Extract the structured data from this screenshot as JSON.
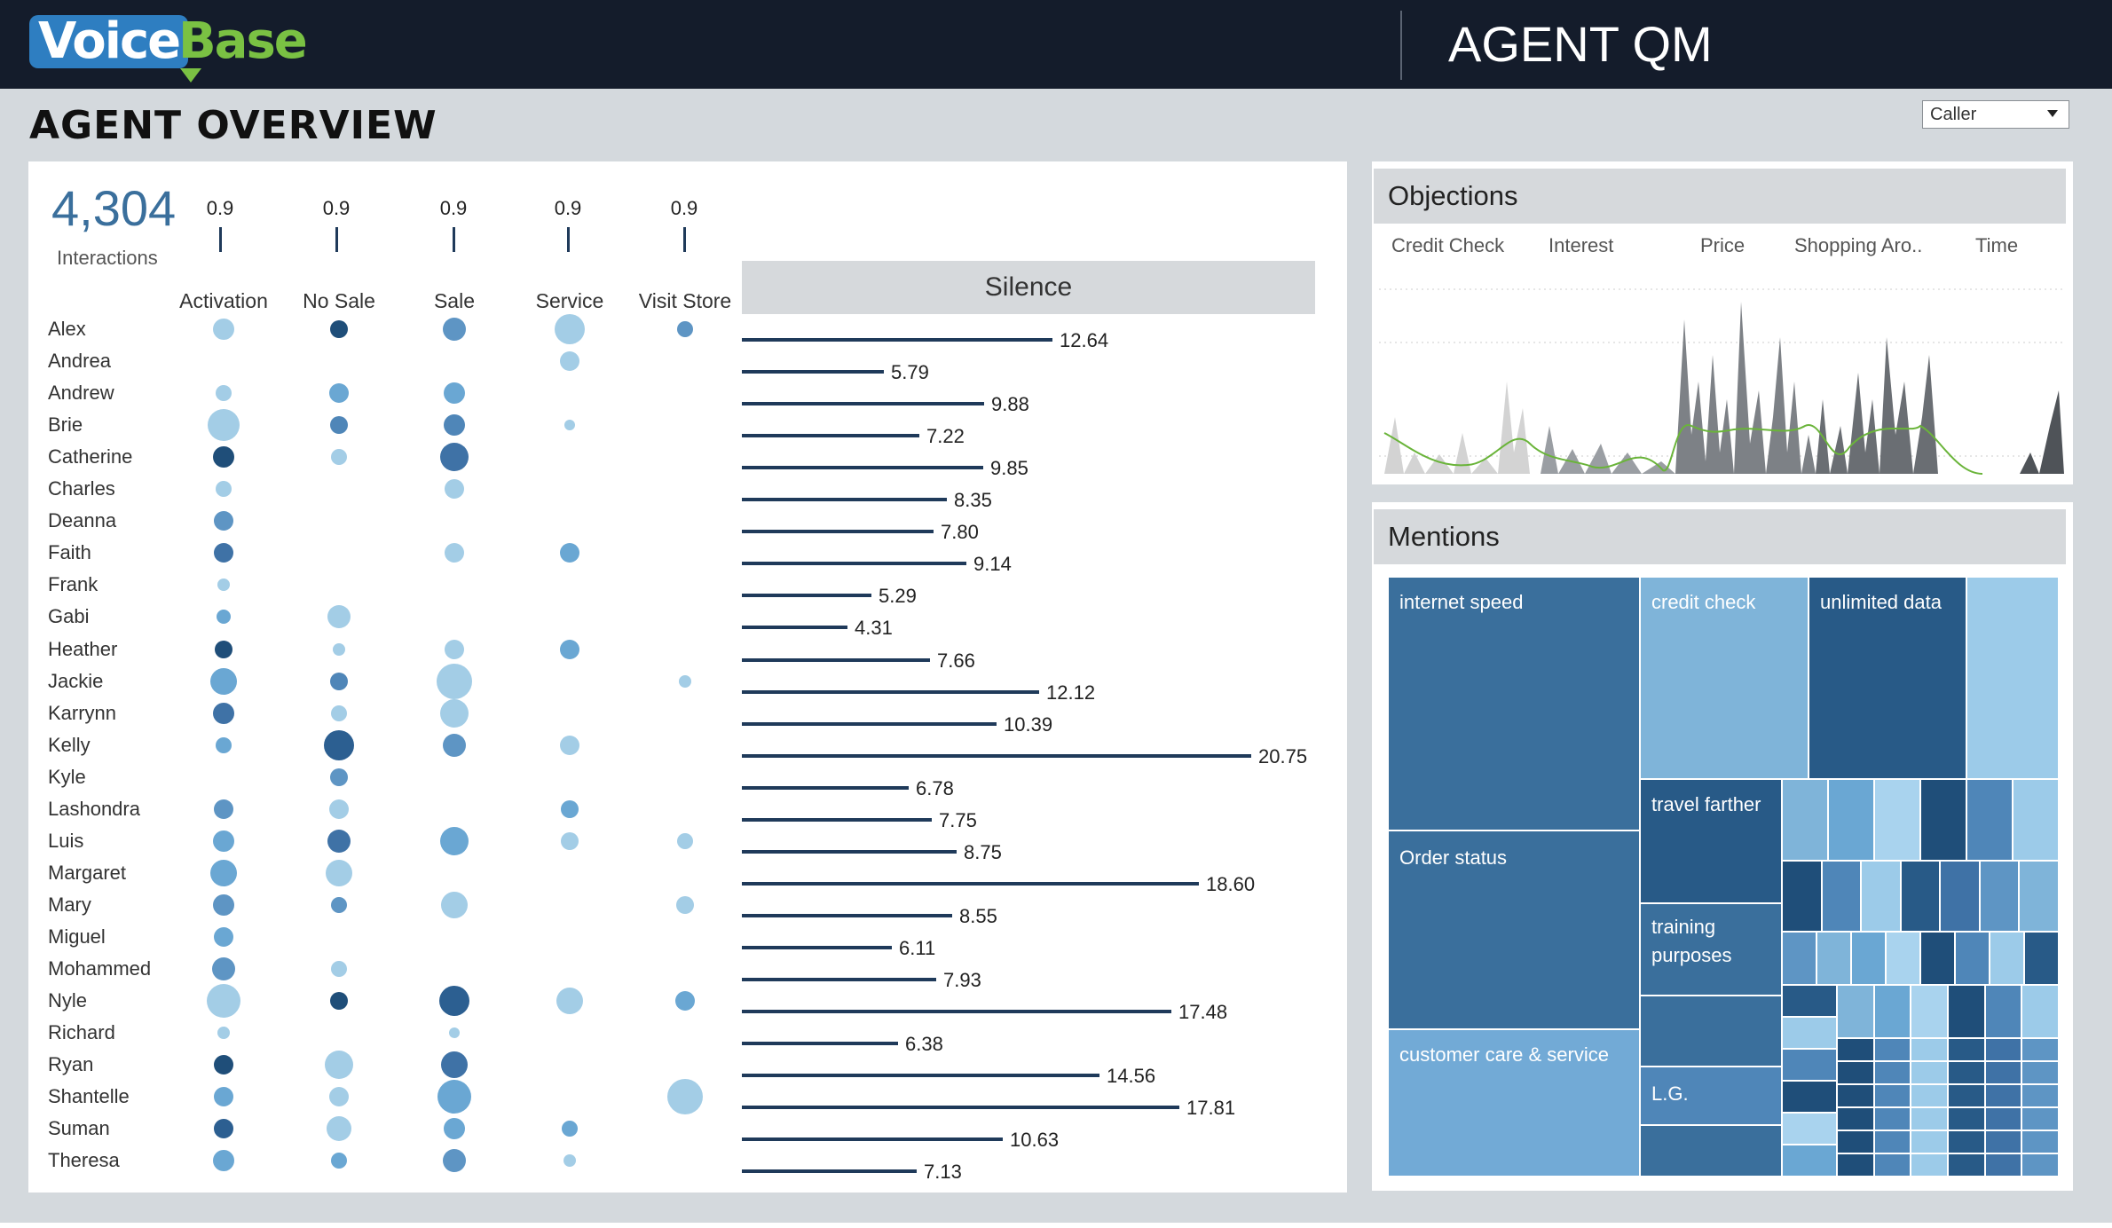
{
  "header": {
    "logo_voice": "Voice",
    "logo_base": "Base",
    "app_title": "AGENT QM"
  },
  "page_title": "AGENT OVERVIEW",
  "filter": {
    "selected": "Caller"
  },
  "kpi": {
    "value": "4,304",
    "label": "Interactions"
  },
  "columns": [
    {
      "label": "Activation",
      "ref": "0.9"
    },
    {
      "label": "No Sale",
      "ref": "0.9"
    },
    {
      "label": "Sale",
      "ref": "0.9"
    },
    {
      "label": "Service",
      "ref": "0.9"
    },
    {
      "label": "Visit Store",
      "ref": "0.9"
    }
  ],
  "silence": {
    "title": "Silence",
    "max": 20.75
  },
  "agents": [
    {
      "name": "Alex",
      "silence": "12.64",
      "dots": [
        [
          12,
          "#a3cde6"
        ],
        [
          10,
          "#1f4e79"
        ],
        [
          13,
          "#5e95c4"
        ],
        [
          17,
          "#a3cde6"
        ],
        [
          9,
          "#5e95c4"
        ]
      ]
    },
    {
      "name": "Andrea",
      "silence": "5.79",
      "dots": [
        null,
        null,
        null,
        [
          11,
          "#a3cde6"
        ],
        null
      ]
    },
    {
      "name": "Andrew",
      "silence": "9.88",
      "dots": [
        [
          9,
          "#a3cde6"
        ],
        [
          11,
          "#6aa7d3"
        ],
        [
          12,
          "#6aa7d3"
        ],
        null,
        null
      ]
    },
    {
      "name": "Brie",
      "silence": "7.22",
      "dots": [
        [
          18,
          "#a3cde6"
        ],
        [
          10,
          "#4f86b8"
        ],
        [
          12,
          "#4f86b8"
        ],
        [
          6,
          "#a3cde6"
        ],
        null
      ]
    },
    {
      "name": "Catherine",
      "silence": "9.85",
      "dots": [
        [
          12,
          "#1f4e79"
        ],
        [
          9,
          "#a3cde6"
        ],
        [
          16,
          "#3f72a6"
        ],
        null,
        null
      ]
    },
    {
      "name": "Charles",
      "silence": "8.35",
      "dots": [
        [
          9,
          "#a3cde6"
        ],
        null,
        [
          11,
          "#a3cde6"
        ],
        null,
        null
      ]
    },
    {
      "name": "Deanna",
      "silence": "7.80",
      "dots": [
        [
          11,
          "#5e95c4"
        ],
        null,
        null,
        null,
        null
      ]
    },
    {
      "name": "Faith",
      "silence": "9.14",
      "dots": [
        [
          11,
          "#3f72a6"
        ],
        null,
        [
          11,
          "#a3cde6"
        ],
        [
          11,
          "#6aa7d3"
        ],
        null
      ]
    },
    {
      "name": "Frank",
      "silence": "5.29",
      "dots": [
        [
          7,
          "#a3cde6"
        ],
        null,
        null,
        null,
        null
      ]
    },
    {
      "name": "Gabi",
      "silence": "4.31",
      "dots": [
        [
          8,
          "#6aa7d3"
        ],
        [
          13,
          "#a3cde6"
        ],
        null,
        null,
        null
      ]
    },
    {
      "name": "Heather",
      "silence": "7.66",
      "dots": [
        [
          10,
          "#1f4e79"
        ],
        [
          7,
          "#a3cde6"
        ],
        [
          11,
          "#a3cde6"
        ],
        [
          11,
          "#6aa7d3"
        ],
        null
      ]
    },
    {
      "name": "Jackie",
      "silence": "12.12",
      "dots": [
        [
          15,
          "#6aa7d3"
        ],
        [
          10,
          "#4f86b8"
        ],
        [
          20,
          "#a3cde6"
        ],
        null,
        [
          7,
          "#a3cde6"
        ]
      ]
    },
    {
      "name": "Karrynn",
      "silence": "10.39",
      "dots": [
        [
          12,
          "#3f72a6"
        ],
        [
          9,
          "#a3cde6"
        ],
        [
          16,
          "#a3cde6"
        ],
        null,
        null
      ]
    },
    {
      "name": "Kelly",
      "silence": "20.75",
      "dots": [
        [
          9,
          "#6aa7d3"
        ],
        [
          17,
          "#2c5f91"
        ],
        [
          13,
          "#5e95c4"
        ],
        [
          11,
          "#a3cde6"
        ],
        null
      ]
    },
    {
      "name": "Kyle",
      "silence": "6.78",
      "dots": [
        null,
        [
          10,
          "#5e95c4"
        ],
        null,
        null,
        null
      ]
    },
    {
      "name": "Lashondra",
      "silence": "7.75",
      "dots": [
        [
          11,
          "#5e95c4"
        ],
        [
          11,
          "#a3cde6"
        ],
        null,
        [
          10,
          "#6aa7d3"
        ],
        null
      ]
    },
    {
      "name": "Luis",
      "silence": "8.75",
      "dots": [
        [
          12,
          "#6aa7d3"
        ],
        [
          13,
          "#3f72a6"
        ],
        [
          16,
          "#6aa7d3"
        ],
        [
          10,
          "#a3cde6"
        ],
        [
          9,
          "#a3cde6"
        ]
      ]
    },
    {
      "name": "Margaret",
      "silence": "18.60",
      "dots": [
        [
          15,
          "#6aa7d3"
        ],
        [
          15,
          "#a3cde6"
        ],
        null,
        null,
        null
      ]
    },
    {
      "name": "Mary",
      "silence": "8.55",
      "dots": [
        [
          12,
          "#5e95c4"
        ],
        [
          9,
          "#5e95c4"
        ],
        [
          15,
          "#a3cde6"
        ],
        null,
        [
          10,
          "#a3cde6"
        ]
      ]
    },
    {
      "name": "Miguel",
      "silence": "6.11",
      "dots": [
        [
          11,
          "#6aa7d3"
        ],
        null,
        null,
        null,
        null
      ]
    },
    {
      "name": "Mohammed",
      "silence": "7.93",
      "dots": [
        [
          13,
          "#5e95c4"
        ],
        [
          9,
          "#a3cde6"
        ],
        null,
        null,
        null
      ]
    },
    {
      "name": "Nyle",
      "silence": "17.48",
      "dots": [
        [
          19,
          "#a3cde6"
        ],
        [
          10,
          "#1f4e79"
        ],
        [
          17,
          "#2c5f91"
        ],
        [
          15,
          "#a3cde6"
        ],
        [
          11,
          "#6aa7d3"
        ]
      ]
    },
    {
      "name": "Richard",
      "silence": "6.38",
      "dots": [
        [
          7,
          "#a3cde6"
        ],
        null,
        [
          6,
          "#a3cde6"
        ],
        null,
        null
      ]
    },
    {
      "name": "Ryan",
      "silence": "14.56",
      "dots": [
        [
          11,
          "#1f4e79"
        ],
        [
          16,
          "#a3cde6"
        ],
        [
          15,
          "#3f72a6"
        ],
        null,
        null
      ]
    },
    {
      "name": "Shantelle",
      "silence": "17.81",
      "dots": [
        [
          11,
          "#6aa7d3"
        ],
        [
          11,
          "#a3cde6"
        ],
        [
          19,
          "#6aa7d3"
        ],
        null,
        [
          20,
          "#a3cde6"
        ]
      ]
    },
    {
      "name": "Suman",
      "silence": "10.63",
      "dots": [
        [
          11,
          "#2c5f91"
        ],
        [
          14,
          "#a3cde6"
        ],
        [
          12,
          "#6aa7d3"
        ],
        [
          9,
          "#6aa7d3"
        ],
        null
      ]
    },
    {
      "name": "Theresa",
      "silence": "7.13",
      "dots": [
        [
          12,
          "#6aa7d3"
        ],
        [
          9,
          "#6aa7d3"
        ],
        [
          13,
          "#5e95c4"
        ],
        [
          7,
          "#a3cde6"
        ],
        null
      ]
    }
  ],
  "objections": {
    "title": "Objections",
    "categories": [
      "Credit Check",
      "Interest",
      "Price",
      "Shopping Aro..",
      "Time"
    ]
  },
  "mentions": {
    "title": "Mentions",
    "labels": {
      "internet_speed": "internet speed",
      "credit_check": "credit check",
      "unlimited_data": "unlimited data",
      "travel_farther": "travel farther",
      "order_status": "Order status",
      "training_purposes": "training purposes",
      "customer_care": "customer care & service",
      "lg": "L.G."
    }
  },
  "colors": {
    "dark_navy": "#141c2b",
    "bar": "#1f3a5a",
    "brand_blue": "#2e7ec1",
    "brand_green": "#7ac143"
  }
}
